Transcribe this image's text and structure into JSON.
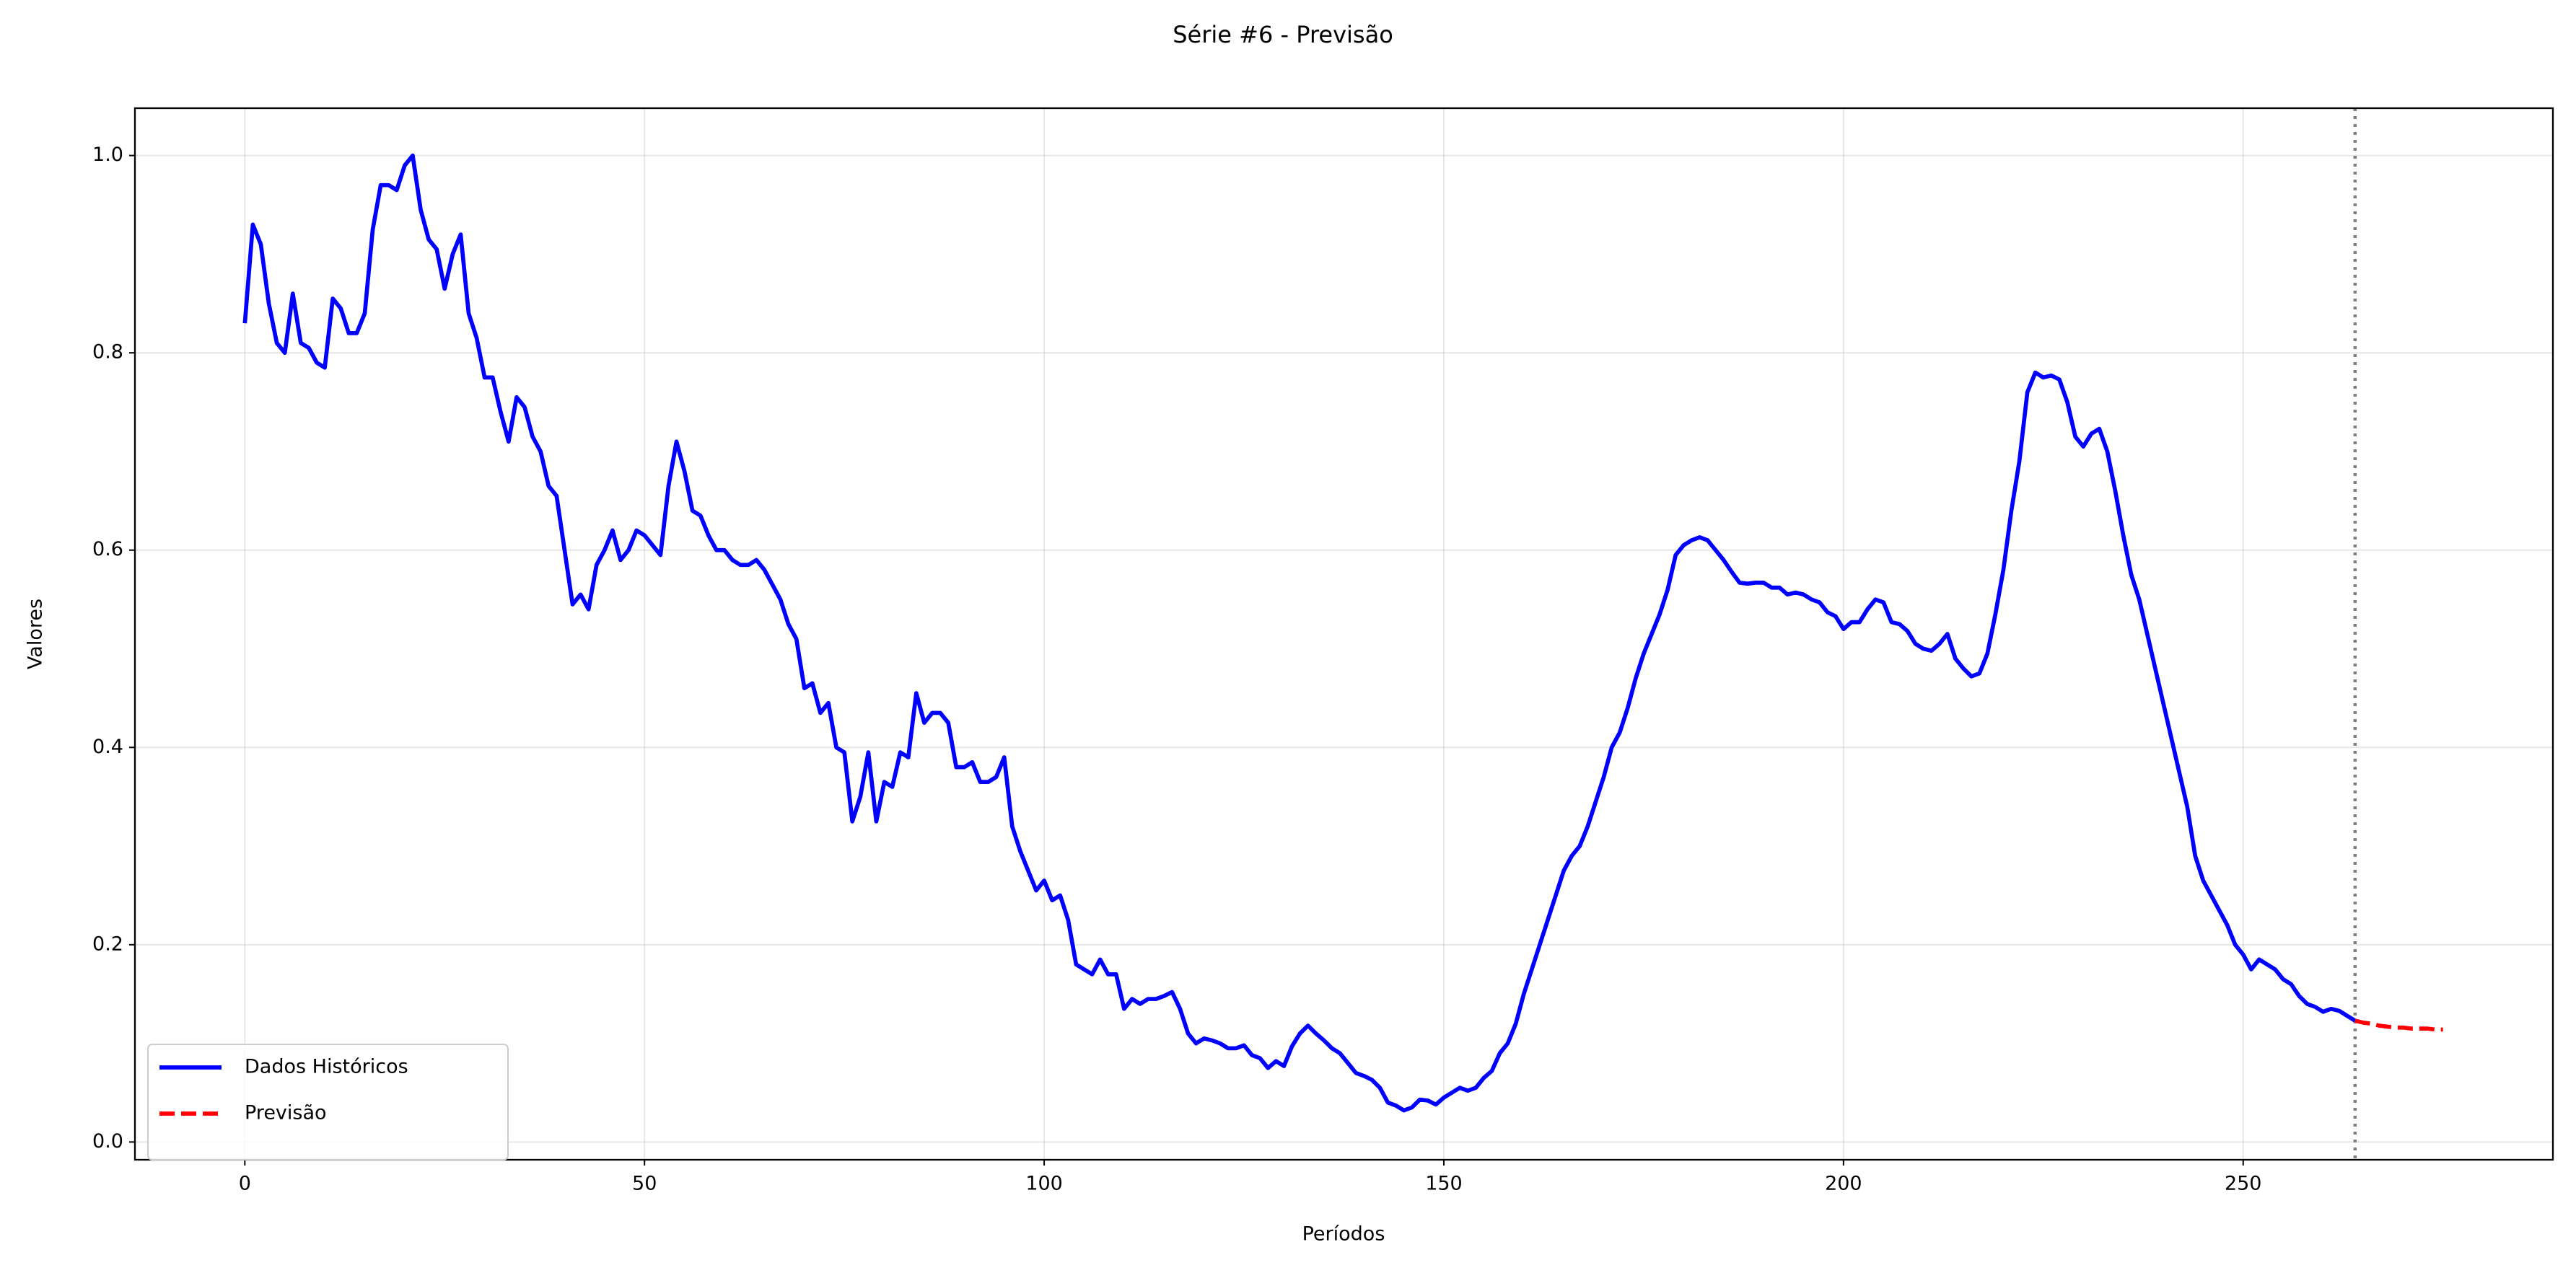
{
  "chart_data": {
    "type": "line",
    "title": "Série #6 - Previsão",
    "xlabel": "Períodos",
    "ylabel": "Valores",
    "xlim": [
      -13.75,
      288.75
    ],
    "xticks": [
      0,
      50,
      100,
      150,
      200,
      250
    ],
    "ylim": [
      -0.018,
      1.048
    ],
    "yticks": [
      {
        "value": 0,
        "label": "0.0"
      },
      0.2,
      0.4,
      0.6,
      0.8,
      {
        "value": 1,
        "label": "1.0"
      }
    ],
    "grid": true,
    "legend": "lower left",
    "vline_x": 264,
    "series": [
      {
        "name": "Dados Históricos",
        "color": "#0000ff",
        "style": "solid",
        "x": [
          0,
          1,
          2,
          3,
          4,
          5,
          6,
          7,
          8,
          9,
          10,
          11,
          12,
          13,
          14,
          15,
          16,
          17,
          18,
          19,
          20,
          21,
          22,
          23,
          24,
          25,
          26,
          27,
          28,
          29,
          30,
          31,
          32,
          33,
          34,
          35,
          36,
          37,
          38,
          39,
          40,
          41,
          42,
          43,
          44,
          45,
          46,
          47,
          48,
          49,
          50,
          51,
          52,
          53,
          54,
          55,
          56,
          57,
          58,
          59,
          60,
          61,
          62,
          63,
          64,
          65,
          66,
          67,
          68,
          69,
          70,
          71,
          72,
          73,
          74,
          75,
          76,
          77,
          78,
          79,
          80,
          81,
          82,
          83,
          84,
          85,
          86,
          87,
          88,
          89,
          90,
          91,
          92,
          93,
          94,
          95,
          96,
          97,
          98,
          99,
          100,
          101,
          102,
          103,
          104,
          105,
          106,
          107,
          108,
          109,
          110,
          111,
          112,
          113,
          114,
          115,
          116,
          117,
          118,
          119,
          120,
          121,
          122,
          123,
          124,
          125,
          126,
          127,
          128,
          129,
          130,
          131,
          132,
          133,
          134,
          135,
          136,
          137,
          138,
          139,
          140,
          141,
          142,
          143,
          144,
          145,
          146,
          147,
          148,
          149,
          150,
          151,
          152,
          153,
          154,
          155,
          156,
          157,
          158,
          159,
          160,
          161,
          162,
          163,
          164,
          165,
          166,
          167,
          168,
          169,
          170,
          171,
          172,
          173,
          174,
          175,
          176,
          177,
          178,
          179,
          180,
          181,
          182,
          183,
          184,
          185,
          186,
          187,
          188,
          189,
          190,
          191,
          192,
          193,
          194,
          195,
          196,
          197,
          198,
          199,
          200,
          201,
          202,
          203,
          204,
          205,
          206,
          207,
          208,
          209,
          210,
          211,
          212,
          213,
          214,
          215,
          216,
          217,
          218,
          219,
          220,
          221,
          222,
          223,
          224,
          225,
          226,
          227,
          228,
          229,
          230,
          231,
          232,
          233,
          234,
          235,
          236,
          237,
          238,
          239,
          240,
          241,
          242,
          243,
          244,
          245,
          246,
          247,
          248,
          249,
          250,
          251,
          252,
          253,
          254,
          255,
          256,
          257,
          258,
          259,
          260,
          261,
          262,
          263,
          264
        ],
        "values": [
          0.83,
          0.93,
          0.91,
          0.85,
          0.81,
          0.8,
          0.86,
          0.81,
          0.805,
          0.79,
          0.785,
          0.855,
          0.845,
          0.82,
          0.82,
          0.84,
          0.925,
          0.97,
          0.97,
          0.965,
          0.99,
          1.0,
          0.945,
          0.915,
          0.905,
          0.865,
          0.9,
          0.92,
          0.84,
          0.815,
          0.775,
          0.775,
          0.74,
          0.71,
          0.755,
          0.745,
          0.715,
          0.7,
          0.665,
          0.655,
          0.6,
          0.545,
          0.555,
          0.54,
          0.585,
          0.6,
          0.62,
          0.59,
          0.6,
          0.62,
          0.615,
          0.605,
          0.595,
          0.665,
          0.71,
          0.68,
          0.64,
          0.635,
          0.615,
          0.6,
          0.6,
          0.59,
          0.585,
          0.585,
          0.59,
          0.58,
          0.565,
          0.55,
          0.525,
          0.51,
          0.46,
          0.465,
          0.435,
          0.445,
          0.4,
          0.395,
          0.325,
          0.35,
          0.395,
          0.325,
          0.365,
          0.36,
          0.395,
          0.39,
          0.455,
          0.425,
          0.435,
          0.435,
          0.425,
          0.38,
          0.38,
          0.385,
          0.365,
          0.365,
          0.37,
          0.39,
          0.32,
          0.295,
          0.275,
          0.255,
          0.265,
          0.245,
          0.25,
          0.225,
          0.18,
          0.175,
          0.17,
          0.185,
          0.17,
          0.17,
          0.135,
          0.145,
          0.14,
          0.145,
          0.145,
          0.148,
          0.152,
          0.135,
          0.11,
          0.1,
          0.105,
          0.103,
          0.1,
          0.095,
          0.095,
          0.098,
          0.088,
          0.085,
          0.075,
          0.082,
          0.077,
          0.097,
          0.11,
          0.118,
          0.11,
          0.103,
          0.095,
          0.09,
          0.08,
          0.07,
          0.067,
          0.063,
          0.055,
          0.04,
          0.037,
          0.032,
          0.035,
          0.043,
          0.042,
          0.038,
          0.045,
          0.05,
          0.055,
          0.052,
          0.055,
          0.065,
          0.072,
          0.09,
          0.1,
          0.12,
          0.15,
          0.175,
          0.2,
          0.225,
          0.25,
          0.275,
          0.29,
          0.3,
          0.32,
          0.345,
          0.37,
          0.4,
          0.415,
          0.44,
          0.47,
          0.495,
          0.515,
          0.535,
          0.56,
          0.595,
          0.605,
          0.61,
          0.613,
          0.61,
          0.6,
          0.59,
          0.578,
          0.567,
          0.566,
          0.567,
          0.567,
          0.562,
          0.562,
          0.555,
          0.557,
          0.555,
          0.55,
          0.547,
          0.537,
          0.533,
          0.52,
          0.527,
          0.527,
          0.54,
          0.55,
          0.547,
          0.527,
          0.525,
          0.518,
          0.505,
          0.5,
          0.498,
          0.505,
          0.515,
          0.49,
          0.48,
          0.472,
          0.475,
          0.495,
          0.535,
          0.58,
          0.64,
          0.69,
          0.76,
          0.78,
          0.775,
          0.777,
          0.773,
          0.75,
          0.715,
          0.705,
          0.718,
          0.723,
          0.7,
          0.66,
          0.615,
          0.575,
          0.55,
          0.515,
          0.48,
          0.445,
          0.41,
          0.375,
          0.34,
          0.29,
          0.265,
          0.25,
          0.235,
          0.22,
          0.2,
          0.19,
          0.175,
          0.185,
          0.18,
          0.175,
          0.165,
          0.16,
          0.148,
          0.14,
          0.137,
          0.132,
          0.135,
          0.133,
          0.128,
          0.123
        ]
      },
      {
        "name": "Previsão",
        "color": "#ff0000",
        "style": "dashed",
        "x": [
          264,
          265,
          266,
          267,
          268,
          269,
          270,
          271,
          272,
          273,
          274,
          275
        ],
        "values": [
          0.123,
          0.121,
          0.12,
          0.118,
          0.117,
          0.116,
          0.116,
          0.115,
          0.115,
          0.115,
          0.114,
          0.114
        ]
      }
    ]
  }
}
